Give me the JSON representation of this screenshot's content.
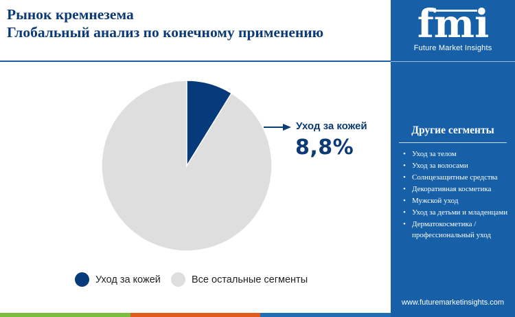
{
  "title": {
    "line1": "Рынок кремнезема",
    "line2": "Глобальный анализ по конечному применению"
  },
  "chart_data": {
    "type": "pie",
    "series": [
      {
        "name": "Уход за кожей",
        "value": 8.8,
        "color": "#063a7a"
      },
      {
        "name": "Все остальные сегменты",
        "value": 91.2,
        "color": "#dedede"
      }
    ],
    "callout": {
      "label": "Уход за кожей",
      "value": "8,8%"
    },
    "legend": "bottom"
  },
  "colors": {
    "brand_dark": "#0b3a75",
    "sidebar": "#1760a8",
    "bottom_bar": [
      "#7cbc3e",
      "#e05a1b",
      "#1f6eb4"
    ]
  },
  "sidebar": {
    "brand": "fmi",
    "brand_sub": "Future Market Insights",
    "segments_title": "Другие сегменты",
    "segments": [
      "Уход за телом",
      "Уход за волосами",
      "Солнцезащитные средства",
      "Декоративная косметика",
      "Мужской уход",
      "Уход за детьми и младенцами",
      "Дерматокосметика / профессиональный уход"
    ],
    "website": "www.futuremarketinsights.com"
  }
}
